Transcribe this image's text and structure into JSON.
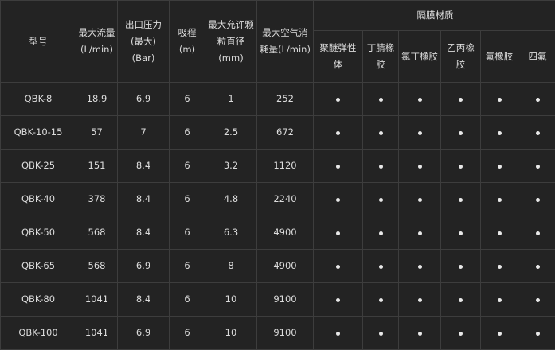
{
  "headers": {
    "model": "型号",
    "max_flow": "最大流量(L/min)",
    "outlet_pressure": "出口压力(最大)(Bar)",
    "suction": "吸程(m)",
    "max_particle": "最大允许颗粒直径(mm)",
    "max_air": "最大空气消耗量(L/min)",
    "diaphragm_group": "隔膜材质",
    "materials": [
      "聚醚弹性体",
      "丁腈橡胶",
      "氯丁橡胶",
      "乙丙橡胶",
      "氟橡胶",
      "四氟"
    ]
  },
  "dot_icon": "bullet-dot",
  "rows": [
    {
      "model": "QBK-8",
      "flow": "18.9",
      "pressure": "6.9",
      "suction": "6",
      "particle": "1",
      "air": "252"
    },
    {
      "model": "QBK-10-15",
      "flow": "57",
      "pressure": "7",
      "suction": "6",
      "particle": "2.5",
      "air": "672"
    },
    {
      "model": "QBK-25",
      "flow": "151",
      "pressure": "8.4",
      "suction": "6",
      "particle": "3.2",
      "air": "1120"
    },
    {
      "model": "QBK-40",
      "flow": "378",
      "pressure": "8.4",
      "suction": "6",
      "particle": "4.8",
      "air": "2240"
    },
    {
      "model": "QBK-50",
      "flow": "568",
      "pressure": "8.4",
      "suction": "6",
      "particle": "6.3",
      "air": "4900"
    },
    {
      "model": "QBK-65",
      "flow": "568",
      "pressure": "6.9",
      "suction": "6",
      "particle": "8",
      "air": "4900"
    },
    {
      "model": "QBK-80",
      "flow": "1041",
      "pressure": "8.4",
      "suction": "6",
      "particle": "10",
      "air": "9100"
    },
    {
      "model": "QBK-100",
      "flow": "1041",
      "pressure": "6.9",
      "suction": "6",
      "particle": "10",
      "air": "9100"
    }
  ]
}
